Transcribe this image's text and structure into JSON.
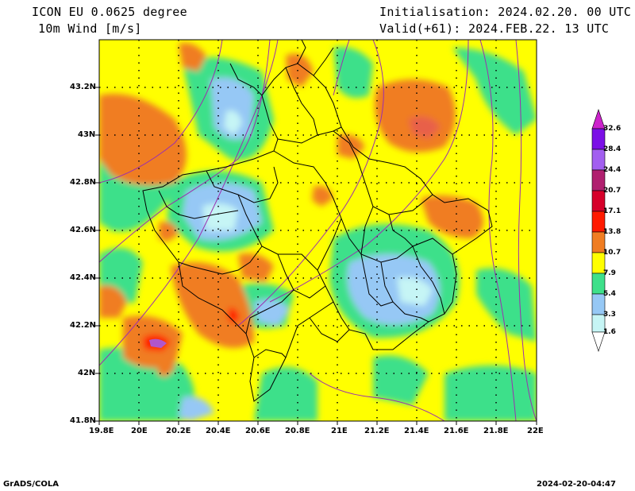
{
  "header": {
    "model": "ICON EU 0.0625 degree",
    "field": "10m Wind [m/s]",
    "init": "Initialisation: 2024.02.20. 00 UTC",
    "valid": "Valid(+61): 2024.FEB.22. 13 UTC"
  },
  "footer": {
    "left": "GrADS/COLA",
    "right": "2024-02-20-04:47"
  },
  "axes": {
    "x_ticks": [
      "19.8E",
      "20E",
      "20.2E",
      "20.4E",
      "20.6E",
      "20.8E",
      "21E",
      "21.2E",
      "21.4E",
      "21.6E",
      "21.8E",
      "22E"
    ],
    "y_ticks": [
      "43.2N",
      "43N",
      "42.8N",
      "42.6N",
      "42.4N",
      "42.2N",
      "42N",
      "41.8N"
    ]
  },
  "colorbar": {
    "levels": [
      "32.6",
      "28.4",
      "24.4",
      "20.7",
      "17.1",
      "13.8",
      "10.7",
      "7.9",
      "5.4",
      "3.3",
      "1.6"
    ],
    "colors": [
      "#7b0fe6",
      "#a25ff0",
      "#b0206f",
      "#d6002a",
      "#ff1a00",
      "#f07d22",
      "#ffff00",
      "#3ee08a",
      "#96c8f5",
      "#c6f5f5",
      "#ffffff"
    ],
    "top_arrow_color": "#cc22cc"
  },
  "map": {
    "lon_range": [
      19.8,
      22.0
    ],
    "lat_range": [
      41.8,
      43.4
    ]
  }
}
